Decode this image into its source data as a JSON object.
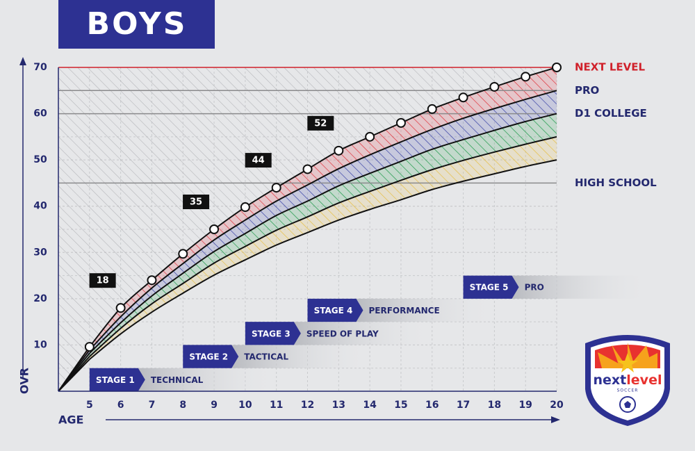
{
  "chart_data": {
    "type": "line",
    "title": "BOYS",
    "xlabel": "AGE",
    "ylabel": "OVR",
    "x": [
      5,
      6,
      7,
      8,
      9,
      10,
      11,
      12,
      13,
      14,
      15,
      16,
      17,
      18,
      19,
      20
    ],
    "xlim": [
      4,
      20
    ],
    "xticks": [
      5,
      6,
      7,
      8,
      9,
      10,
      11,
      12,
      13,
      14,
      15,
      16,
      17,
      18,
      19,
      20
    ],
    "ylim": [
      0,
      70
    ],
    "yticks": [
      10,
      20,
      30,
      40,
      50,
      60,
      70
    ],
    "grid": true,
    "minor_grid_step": 5,
    "series": [
      {
        "color": "#111111",
        "band_color": "#e0323c",
        "markers": true,
        "values": [
          9.6,
          18,
          24,
          29.7,
          35,
          39.8,
          44,
          48,
          52,
          55,
          58,
          61,
          63.5,
          65.8,
          68,
          70
        ],
        "value_labels": [
          null,
          "18",
          null,
          null,
          "35",
          null,
          "44",
          null,
          "52",
          null,
          null,
          null,
          null,
          null,
          null,
          null
        ]
      },
      {
        "color": "#111111",
        "band_color": "#3a43a6",
        "markers": false,
        "values": [
          8.9,
          16.1,
          22.3,
          27.6,
          32.7,
          37,
          41.1,
          44.6,
          48.1,
          51.1,
          53.9,
          56.6,
          59,
          61.1,
          63.1,
          65
        ]
      },
      {
        "color": "#111111",
        "band_color": "#1f9a4a",
        "markers": false,
        "values": [
          8.2,
          14.8,
          20.6,
          25.5,
          30.2,
          34.1,
          38,
          41.1,
          44.4,
          47.1,
          49.7,
          52.3,
          54.4,
          56.4,
          58.3,
          60
        ]
      },
      {
        "color": "#111111",
        "band_color": "#e6bf45",
        "markers": false,
        "values": [
          7.5,
          13.6,
          18.9,
          23.3,
          27.7,
          31.3,
          34.8,
          37.7,
          40.7,
          43.2,
          45.6,
          47.9,
          49.9,
          51.7,
          53.4,
          55
        ]
      },
      {
        "color": "#111111",
        "markers": false,
        "values": [
          6.9,
          12.4,
          17.1,
          21.2,
          25.1,
          28.4,
          31.6,
          34.3,
          37,
          39.3,
          41.4,
          43.6,
          45.4,
          47,
          48.6,
          50
        ]
      }
    ],
    "reference_lines": [
      {
        "value": 70,
        "label": "NEXT LEVEL",
        "color": "#d0202a",
        "label_color": "#d0202a"
      },
      {
        "value": 65,
        "label": "PRO",
        "color": "#8a8a8c",
        "label_color": "#23286e"
      },
      {
        "value": 60,
        "label": "D1 COLLEGE",
        "color": "#8a8a8c",
        "label_color": "#23286e"
      },
      {
        "value": 45,
        "label": "HIGH SCHOOL",
        "color": "#8a8a8c",
        "label_color": "#23286e"
      }
    ],
    "stages": [
      {
        "name": "STAGE 1",
        "label": "TECHNICAL",
        "age": 5
      },
      {
        "name": "STAGE 2",
        "label": "TACTICAL",
        "age": 8
      },
      {
        "name": "STAGE 3",
        "label": "SPEED OF PLAY",
        "age": 10
      },
      {
        "name": "STAGE 4",
        "label": "PERFORMANCE",
        "age": 12
      },
      {
        "name": "STAGE 5",
        "label": "PRO",
        "age": 17
      }
    ]
  },
  "logo": {
    "word_a": "next",
    "word_b": "level",
    "sub": "SOCCER"
  }
}
